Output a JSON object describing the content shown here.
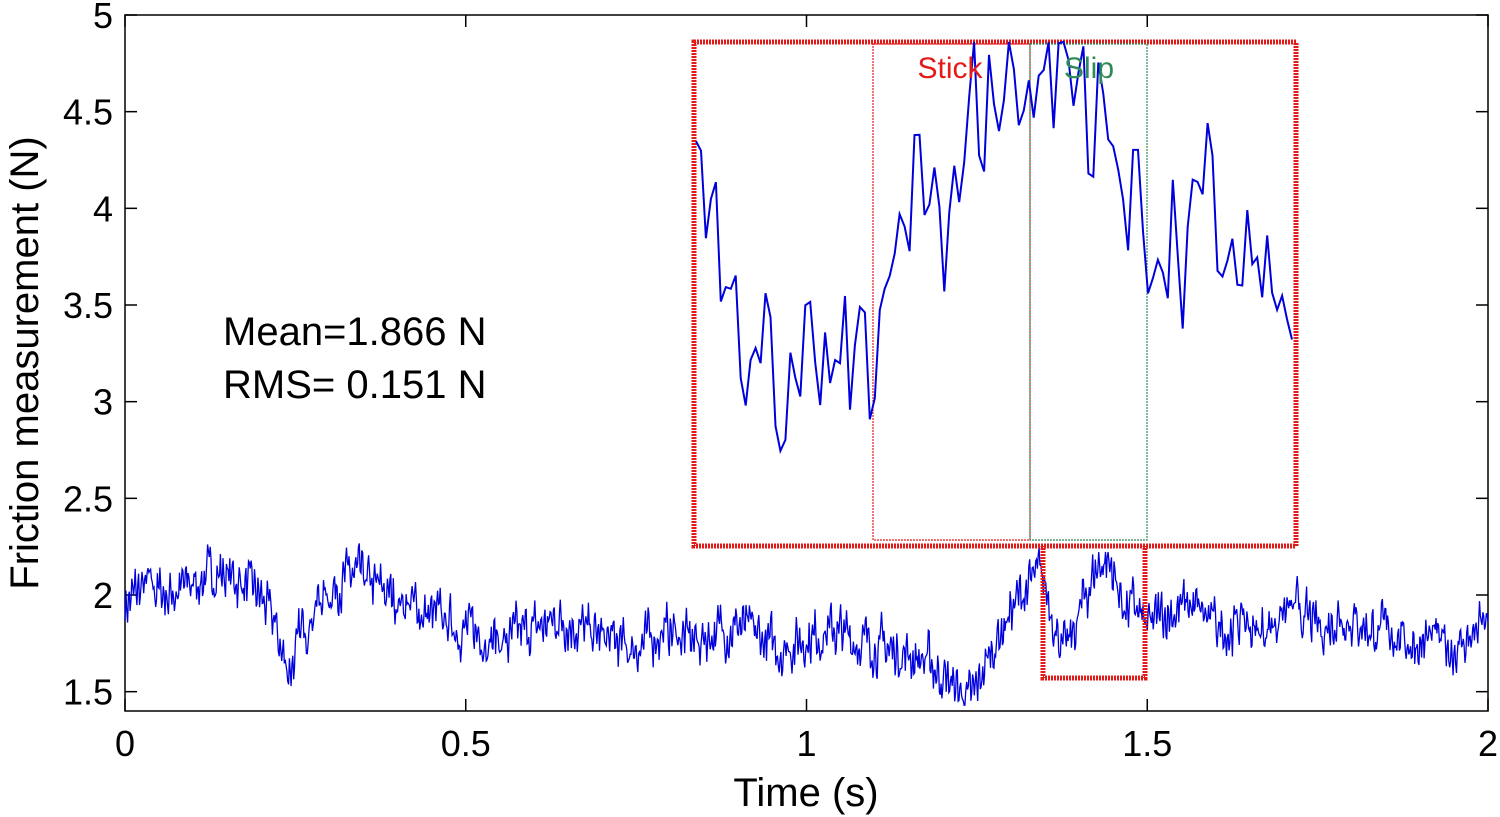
{
  "chart_data": {
    "type": "line",
    "xlabel": "Time (s)",
    "ylabel": "Friction measurement (N)",
    "xlim": [
      0,
      2
    ],
    "ylim": [
      1.4,
      5
    ],
    "x_ticks": [
      0,
      0.5,
      1,
      1.5,
      2
    ],
    "x_tick_labels": [
      "0",
      "0.5",
      "1",
      "1.5",
      "2"
    ],
    "y_ticks": [
      1.5,
      2,
      2.5,
      3,
      3.5,
      4,
      4.5,
      5
    ],
    "y_tick_labels": [
      "1.5",
      "2",
      "2.5",
      "3",
      "3.5",
      "4",
      "4.5",
      "5"
    ],
    "grid": false,
    "annotations": {
      "mean": "Mean=1.866 N",
      "rms": "RMS= 0.151 N"
    },
    "zoom_region": {
      "x": [
        1.35,
        1.5
      ],
      "y": [
        1.56,
        2.31
      ]
    },
    "inset": {
      "x_range": [
        1.35,
        1.5
      ],
      "y_range": [
        1.56,
        2.2
      ],
      "stick_label": "Stick",
      "slip_label": "Slip",
      "stick_window": [
        1.376,
        1.411
      ],
      "slip_window": [
        1.411,
        1.437
      ]
    },
    "series": [
      {
        "name": "Friction",
        "color": "#0000dd",
        "x": [
          0,
          0.02,
          0.04,
          0.06,
          0.08,
          0.1,
          0.12,
          0.14,
          0.16,
          0.18,
          0.2,
          0.22,
          0.23,
          0.24,
          0.25,
          0.26,
          0.28,
          0.3,
          0.32,
          0.34,
          0.36,
          0.38,
          0.4,
          0.42,
          0.44,
          0.46,
          0.48,
          0.5,
          0.52,
          0.54,
          0.56,
          0.58,
          0.6,
          0.62,
          0.64,
          0.66,
          0.68,
          0.7,
          0.72,
          0.74,
          0.76,
          0.78,
          0.8,
          0.82,
          0.84,
          0.86,
          0.88,
          0.9,
          0.92,
          0.94,
          0.96,
          0.98,
          1.0,
          1.02,
          1.04,
          1.06,
          1.08,
          1.1,
          1.12,
          1.14,
          1.16,
          1.18,
          1.2,
          1.22,
          1.23,
          1.24,
          1.25,
          1.26,
          1.28,
          1.3,
          1.32,
          1.34,
          1.35,
          1.36,
          1.37,
          1.38,
          1.39,
          1.4,
          1.41,
          1.42,
          1.43,
          1.44,
          1.45,
          1.46,
          1.47,
          1.48,
          1.49,
          1.5,
          1.52,
          1.54,
          1.56,
          1.58,
          1.6,
          1.62,
          1.64,
          1.66,
          1.68,
          1.7,
          1.72,
          1.74,
          1.76,
          1.78,
          1.8,
          1.82,
          1.84,
          1.86,
          1.88,
          1.9,
          1.92,
          1.94,
          1.96,
          1.98,
          2.0
        ],
        "values": [
          1.95,
          2.02,
          2.05,
          2.0,
          2.03,
          2.06,
          2.1,
          2.12,
          2.08,
          2.05,
          1.98,
          1.85,
          1.7,
          1.62,
          1.68,
          1.82,
          1.95,
          2.02,
          2.08,
          2.1,
          2.05,
          2.02,
          1.98,
          1.95,
          1.9,
          1.88,
          1.85,
          1.82,
          1.8,
          1.78,
          1.75,
          1.8,
          1.82,
          1.85,
          1.88,
          1.85,
          1.8,
          1.78,
          1.75,
          1.72,
          1.75,
          1.8,
          1.82,
          1.78,
          1.76,
          1.8,
          1.82,
          1.85,
          1.8,
          1.76,
          1.72,
          1.75,
          1.78,
          1.8,
          1.82,
          1.78,
          1.76,
          1.74,
          1.72,
          1.7,
          1.68,
          1.65,
          1.58,
          1.52,
          1.48,
          1.45,
          1.5,
          1.62,
          1.78,
          1.92,
          2.02,
          2.1,
          2.04,
          1.92,
          1.8,
          1.7,
          1.78,
          1.9,
          2.0,
          2.1,
          2.16,
          2.18,
          2.12,
          2.0,
          1.92,
          1.95,
          1.88,
          1.82,
          1.9,
          1.92,
          1.95,
          1.9,
          1.85,
          1.82,
          1.88,
          1.8,
          1.85,
          1.9,
          1.92,
          1.85,
          1.82,
          1.9,
          1.88,
          1.84,
          1.8,
          1.82,
          1.76,
          1.75,
          1.78,
          1.72,
          1.74,
          1.8,
          1.86
        ]
      }
    ]
  }
}
